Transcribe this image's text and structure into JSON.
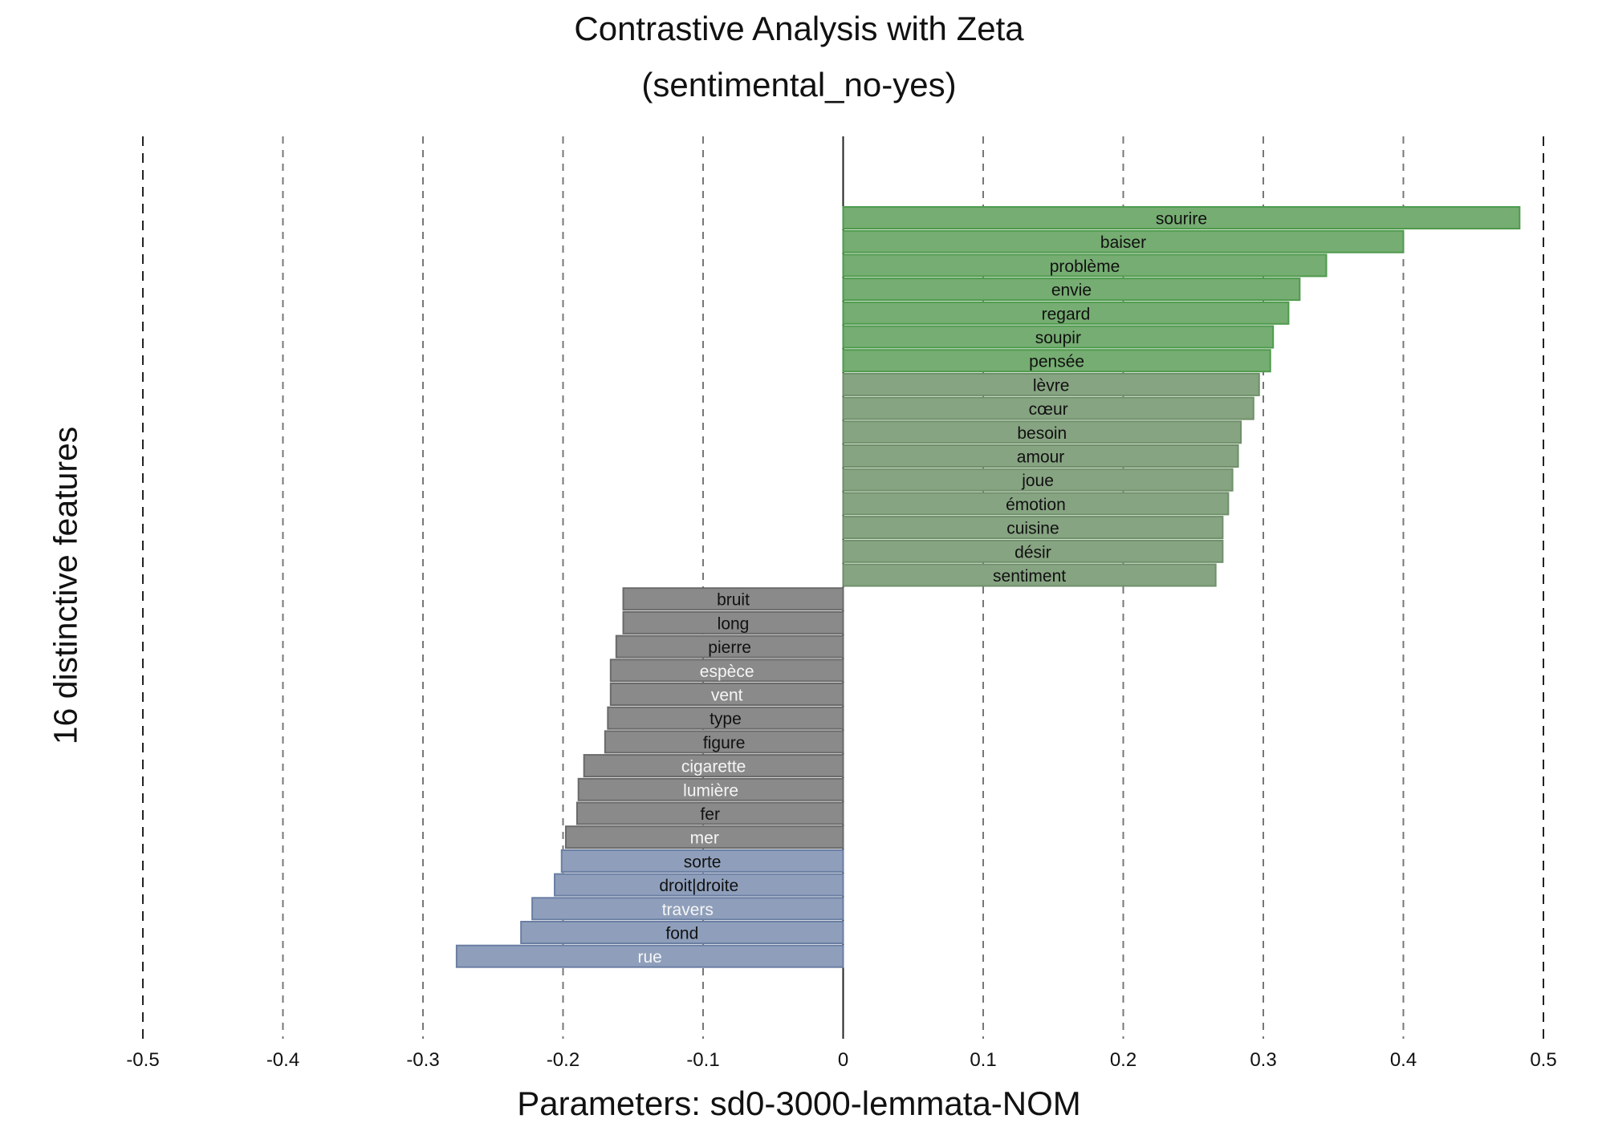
{
  "chart_data": {
    "type": "bar",
    "orientation": "horizontal",
    "title": "Contrastive Analysis with Zeta",
    "subtitle": "(sentimental_no-yes)",
    "xlabel": "Parameters: sd0-3000-lemmata-NOM",
    "ylabel": "16 distinctive features",
    "xlim": [
      -0.5,
      0.5
    ],
    "xticks": [
      "-0.5",
      "-0.4",
      "-0.3",
      "-0.2",
      "-0.1",
      "0",
      "0.1",
      "0.2",
      "0.3",
      "0.4",
      "0.5"
    ],
    "grid": "vertical dashed",
    "colors": {
      "positive_strong": "#76ad72",
      "positive_mid": "#87a482",
      "neutral": "#8a8a8a",
      "negative_strong": "#8f9fbb"
    },
    "bars": [
      {
        "label": "sourire",
        "value": 0.483,
        "color": "#76ad72",
        "text_color": "#111111"
      },
      {
        "label": "baiser",
        "value": 0.4,
        "color": "#76ad72",
        "text_color": "#111111"
      },
      {
        "label": "problème",
        "value": 0.345,
        "color": "#76ad72",
        "text_color": "#111111"
      },
      {
        "label": "envie",
        "value": 0.326,
        "color": "#76ad72",
        "text_color": "#111111"
      },
      {
        "label": "regard",
        "value": 0.318,
        "color": "#76ad72",
        "text_color": "#111111"
      },
      {
        "label": "soupir",
        "value": 0.307,
        "color": "#76ad72",
        "text_color": "#111111"
      },
      {
        "label": "pensée",
        "value": 0.305,
        "color": "#76ad72",
        "text_color": "#111111"
      },
      {
        "label": "lèvre",
        "value": 0.297,
        "color": "#87a482",
        "text_color": "#111111"
      },
      {
        "label": "cœur",
        "value": 0.293,
        "color": "#87a482",
        "text_color": "#111111"
      },
      {
        "label": "besoin",
        "value": 0.284,
        "color": "#87a482",
        "text_color": "#111111"
      },
      {
        "label": "amour",
        "value": 0.282,
        "color": "#87a482",
        "text_color": "#111111"
      },
      {
        "label": "joue",
        "value": 0.278,
        "color": "#87a482",
        "text_color": "#111111"
      },
      {
        "label": "émotion",
        "value": 0.275,
        "color": "#87a482",
        "text_color": "#111111"
      },
      {
        "label": "cuisine",
        "value": 0.271,
        "color": "#87a482",
        "text_color": "#111111"
      },
      {
        "label": "désir",
        "value": 0.271,
        "color": "#87a482",
        "text_color": "#111111"
      },
      {
        "label": "sentiment",
        "value": 0.266,
        "color": "#87a482",
        "text_color": "#111111"
      },
      {
        "label": "bruit",
        "value": -0.157,
        "color": "#8a8a8a",
        "text_color": "#111111"
      },
      {
        "label": "long",
        "value": -0.157,
        "color": "#8a8a8a",
        "text_color": "#111111"
      },
      {
        "label": "pierre",
        "value": -0.162,
        "color": "#8a8a8a",
        "text_color": "#111111"
      },
      {
        "label": "espèce",
        "value": -0.166,
        "color": "#8a8a8a",
        "text_color": "#f5f5f5"
      },
      {
        "label": "vent",
        "value": -0.166,
        "color": "#8a8a8a",
        "text_color": "#f5f5f5"
      },
      {
        "label": "type",
        "value": -0.168,
        "color": "#8a8a8a",
        "text_color": "#111111"
      },
      {
        "label": "figure",
        "value": -0.17,
        "color": "#8a8a8a",
        "text_color": "#111111"
      },
      {
        "label": "cigarette",
        "value": -0.185,
        "color": "#8a8a8a",
        "text_color": "#f5f5f5"
      },
      {
        "label": "lumière",
        "value": -0.189,
        "color": "#8a8a8a",
        "text_color": "#f5f5f5"
      },
      {
        "label": "fer",
        "value": -0.19,
        "color": "#8a8a8a",
        "text_color": "#111111"
      },
      {
        "label": "mer",
        "value": -0.198,
        "color": "#8a8a8a",
        "text_color": "#f5f5f5"
      },
      {
        "label": "sorte",
        "value": -0.201,
        "color": "#8f9fbb",
        "text_color": "#111111"
      },
      {
        "label": "droit|droite",
        "value": -0.206,
        "color": "#8f9fbb",
        "text_color": "#111111"
      },
      {
        "label": "travers",
        "value": -0.222,
        "color": "#8f9fbb",
        "text_color": "#f5f5f5"
      },
      {
        "label": "fond",
        "value": -0.23,
        "color": "#8f9fbb",
        "text_color": "#111111"
      },
      {
        "label": "rue",
        "value": -0.276,
        "color": "#8f9fbb",
        "text_color": "#f5f5f5"
      }
    ]
  }
}
